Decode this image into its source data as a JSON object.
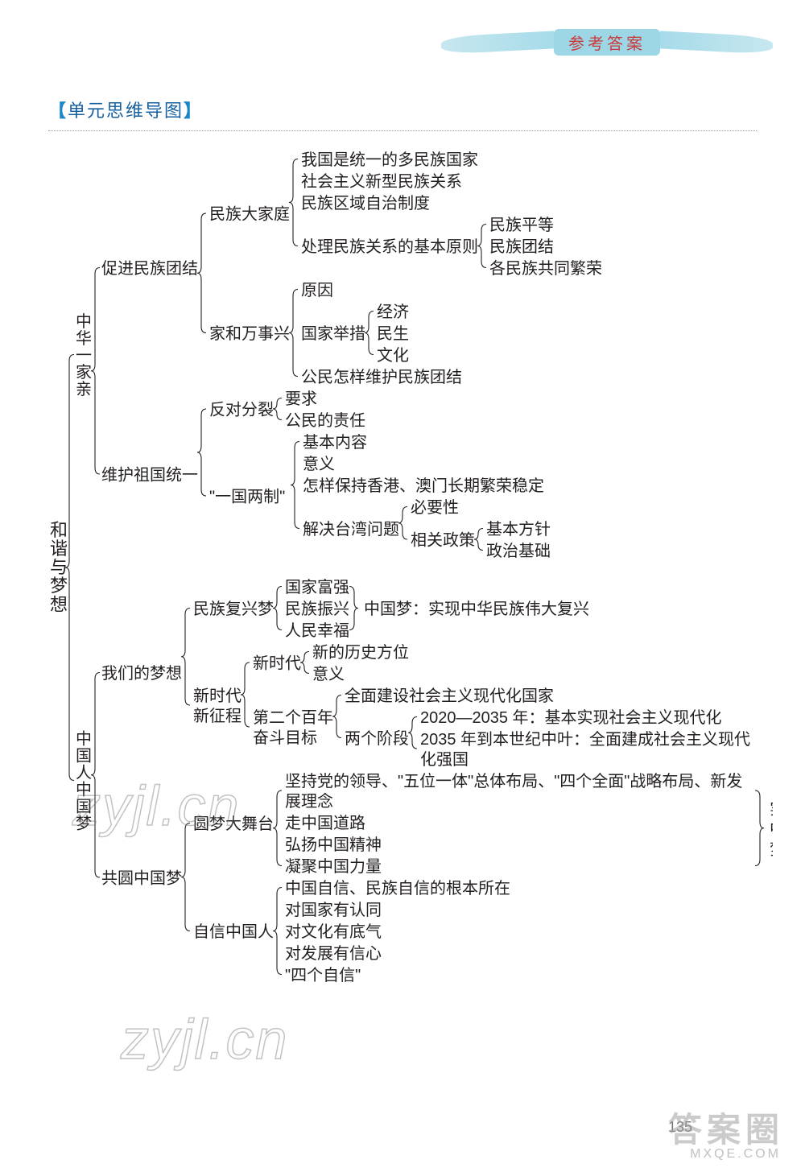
{
  "header": {
    "ribbon_label": "参考答案"
  },
  "section_title": "单元思维导图",
  "page_number": "135",
  "watermarks": [
    "zyjl.cn",
    "zyjl.cn"
  ],
  "footer": {
    "brand": "答案圈",
    "sub": "MXQE.COM"
  },
  "style": {
    "background": "#ffffff",
    "text_color": "#231f20",
    "title_color": "#1660a0",
    "ribbon_bg": "#9dd6e5",
    "ribbon_text": "#c93b3b",
    "brace_stroke": "#231f20",
    "brace_width": 1.1,
    "font_size_root": 22,
    "font_size_node": 20
  },
  "mindmap": {
    "root": "和谐与梦想",
    "children": [
      {
        "label": "中华一家亲",
        "children": [
          {
            "label": "促进民族团结",
            "children": [
              {
                "label": "民族大家庭",
                "children": [
                  {
                    "label": "我国是统一的多民族国家"
                  },
                  {
                    "label": "社会主义新型民族关系"
                  },
                  {
                    "label": "民族区域自治制度"
                  },
                  {
                    "label": "处理民族关系的基本原则",
                    "children": [
                      {
                        "label": "民族平等"
                      },
                      {
                        "label": "民族团结"
                      },
                      {
                        "label": "各民族共同繁荣"
                      }
                    ]
                  }
                ]
              },
              {
                "label": "家和万事兴",
                "children": [
                  {
                    "label": "原因"
                  },
                  {
                    "label": "国家举措",
                    "children": [
                      {
                        "label": "经济"
                      },
                      {
                        "label": "民生"
                      },
                      {
                        "label": "文化"
                      }
                    ]
                  },
                  {
                    "label": "公民怎样维护民族团结"
                  }
                ]
              }
            ]
          },
          {
            "label": "维护祖国统一",
            "children": [
              {
                "label": "反对分裂",
                "children": [
                  {
                    "label": "要求"
                  },
                  {
                    "label": "公民的责任"
                  }
                ]
              },
              {
                "label": "\"一国两制\"",
                "children": [
                  {
                    "label": "基本内容"
                  },
                  {
                    "label": "意义"
                  },
                  {
                    "label": "怎样保持香港、澳门长期繁荣稳定"
                  },
                  {
                    "label": "解决台湾问题",
                    "children": [
                      {
                        "label": "必要性"
                      },
                      {
                        "label": "相关政策",
                        "children": [
                          {
                            "label": "基本方针"
                          },
                          {
                            "label": "政治基础"
                          }
                        ]
                      }
                    ]
                  }
                ]
              }
            ]
          }
        ]
      },
      {
        "label": "中国人 中国梦",
        "children": [
          {
            "label": "我们的梦想",
            "children": [
              {
                "label": "民族复兴梦",
                "children": [
                  {
                    "label": "国家富强"
                  },
                  {
                    "label": "民族振兴"
                  },
                  {
                    "label": "人民幸福"
                  }
                ],
                "merge_right": "中国梦：实现中华民族伟大复兴"
              },
              {
                "label": "新时代\n新征程",
                "children": [
                  {
                    "label": "新时代",
                    "children": [
                      {
                        "label": "新的历史方位"
                      },
                      {
                        "label": "意义"
                      }
                    ]
                  },
                  {
                    "label": "第二个百年\n奋斗目标",
                    "children": [
                      {
                        "label": "全面建设社会主义现代化国家"
                      },
                      {
                        "label": "两个阶段",
                        "children": [
                          {
                            "label": "2020—2035 年：基本实现社会主义现代化"
                          },
                          {
                            "label": "2035 年到本世纪中叶：全面建成社会主义现代化强国"
                          }
                        ]
                      }
                    ]
                  }
                ]
              }
            ]
          },
          {
            "label": "共圆中国梦",
            "children": [
              {
                "label": "圆梦大舞台",
                "children": [
                  {
                    "label": "坚持党的领导、\"五位一体\"总体布局、\"四个全面\"战略布局、新发展理念"
                  },
                  {
                    "label": "走中国道路"
                  },
                  {
                    "label": "弘扬中国精神"
                  },
                  {
                    "label": "凝聚中国力量"
                  }
                ],
                "merge_right": "实现中国梦"
              },
              {
                "label": "自信中国人",
                "children": [
                  {
                    "label": "中国自信、民族自信的根本所在"
                  },
                  {
                    "label": "对国家有认同"
                  },
                  {
                    "label": "对文化有底气"
                  },
                  {
                    "label": "对发展有信心"
                  },
                  {
                    "label": "\"四个自信\""
                  }
                ]
              }
            ]
          }
        ]
      }
    ]
  }
}
